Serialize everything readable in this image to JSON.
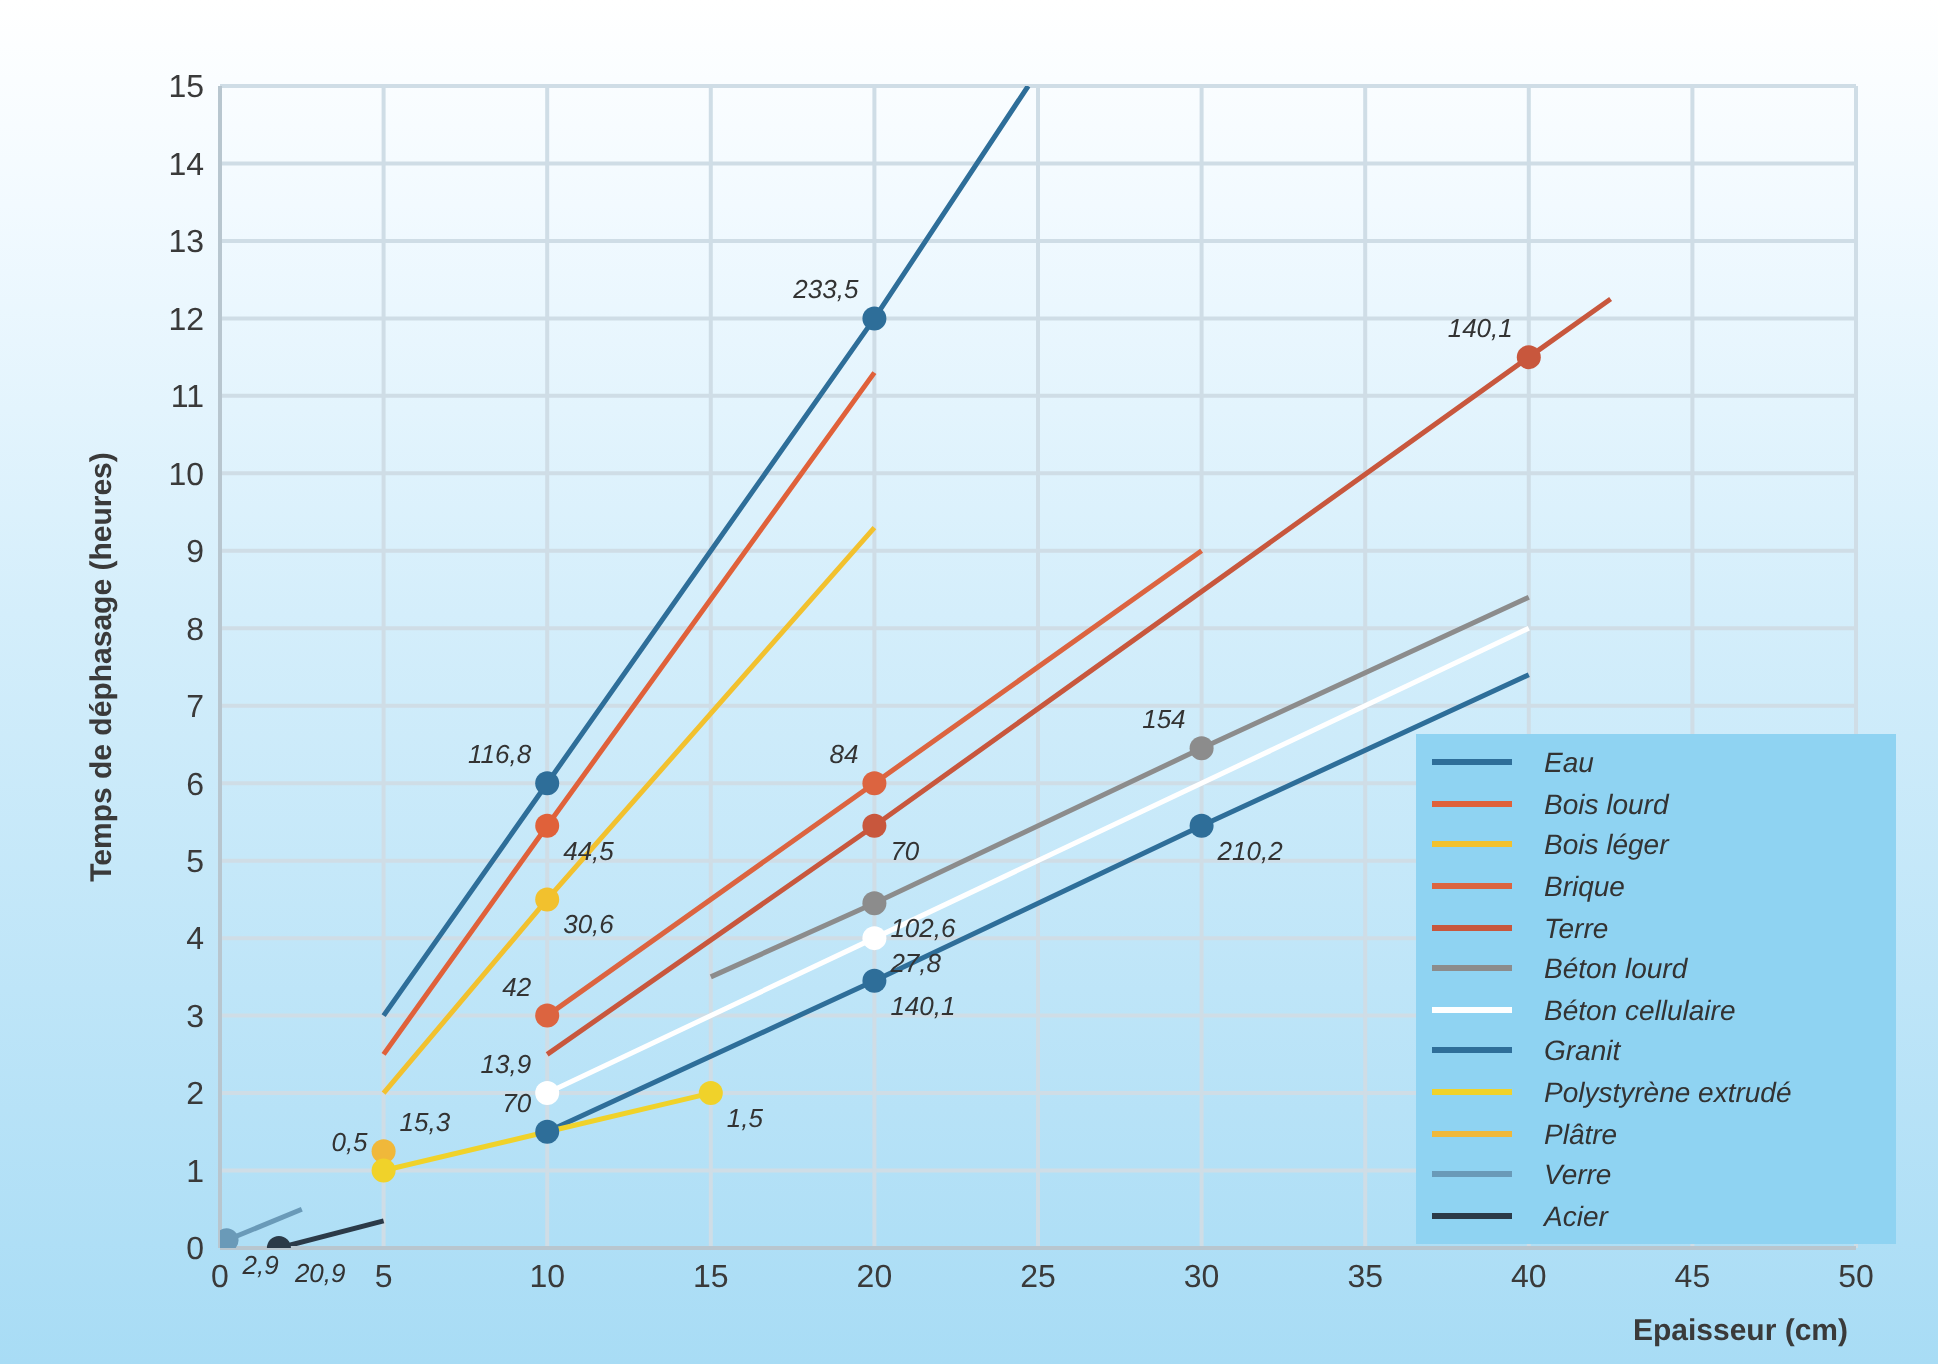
{
  "chart_data": {
    "type": "line",
    "xlabel": "Epaisseur (cm)",
    "ylabel": "Temps de déphasage (heures)",
    "xlim": [
      0,
      50
    ],
    "ylim": [
      0,
      15
    ],
    "xticks": [
      0,
      5,
      10,
      15,
      20,
      25,
      30,
      35,
      40,
      45,
      50
    ],
    "yticks": [
      0,
      1,
      2,
      3,
      4,
      5,
      6,
      7,
      8,
      9,
      10,
      11,
      12,
      13,
      14,
      15
    ],
    "grid": true,
    "legend": "bottom right",
    "marker": "none",
    "line_style": "solid",
    "series": [
      {
        "name": "Eau",
        "color": "#2e6e99",
        "x": [
          5,
          10,
          20,
          24.7
        ],
        "values": [
          3,
          6,
          12,
          15
        ]
      },
      {
        "name": "Bois lourd",
        "color": "#e0613a",
        "x": [
          5,
          10,
          20
        ],
        "values": [
          2.5,
          5.45,
          11.3
        ]
      },
      {
        "name": "Bois léger",
        "color": "#f2c12e",
        "x": [
          5,
          10,
          20
        ],
        "values": [
          2,
          4.5,
          9.3
        ]
      },
      {
        "name": "Brique",
        "color": "#dc6440",
        "x": [
          10,
          20,
          30
        ],
        "values": [
          3,
          6,
          9
        ]
      },
      {
        "name": "Terre",
        "color": "#c8573d",
        "x": [
          10,
          20,
          40,
          42.5
        ],
        "values": [
          2.5,
          5.45,
          11.5,
          12.25
        ]
      },
      {
        "name": "Béton lourd",
        "color": "#8c8c8c",
        "x": [
          15,
          20,
          30,
          40
        ],
        "values": [
          3.5,
          4.45,
          6.45,
          8.4
        ]
      },
      {
        "name": "Béton cellulaire",
        "color": "#ffffff",
        "x": [
          10,
          20,
          40
        ],
        "values": [
          2,
          4,
          8
        ]
      },
      {
        "name": "Granit",
        "color": "#2e6e99",
        "x": [
          10,
          20,
          30,
          40
        ],
        "values": [
          1.5,
          3.45,
          5.45,
          7.4
        ]
      },
      {
        "name": "Polystyrène extrudé",
        "color": "#f0d22a",
        "x": [
          5,
          10,
          15
        ],
        "values": [
          1,
          1.5,
          2
        ]
      },
      {
        "name": "Plâtre",
        "type": "scatter",
        "marker": "circle",
        "color": "#f0b83a",
        "x": [
          5
        ],
        "values": [
          1.25
        ]
      },
      {
        "name": "Verre",
        "color": "#6a9ab8",
        "x": [
          0.2,
          2.5
        ],
        "values": [
          0.1,
          0.5
        ]
      },
      {
        "name": "Acier",
        "color": "#2b3a48",
        "x": [
          1.8,
          5
        ],
        "values": [
          0,
          0.35
        ]
      },
      {
        "type": "scatter",
        "marker": "circle",
        "color": "#2e6e99",
        "x": [
          10,
          20
        ],
        "values": [
          6,
          12
        ]
      },
      {
        "type": "scatter",
        "marker": "circle",
        "color": "#e0613a",
        "x": [
          10
        ],
        "values": [
          5.45
        ]
      },
      {
        "type": "scatter",
        "marker": "circle",
        "color": "#f2c12e",
        "x": [
          10
        ],
        "values": [
          4.5
        ]
      },
      {
        "type": "scatter",
        "marker": "circle",
        "color": "#dc6440",
        "x": [
          10,
          20
        ],
        "values": [
          3,
          6
        ]
      },
      {
        "type": "scatter",
        "marker": "circle",
        "color": "#c8573d",
        "x": [
          20,
          40
        ],
        "values": [
          5.45,
          11.5
        ]
      },
      {
        "type": "scatter",
        "marker": "circle",
        "color": "#8c8c8c",
        "x": [
          20,
          30
        ],
        "values": [
          4.45,
          6.45
        ]
      },
      {
        "type": "scatter",
        "marker": "circle",
        "color": "#ffffff",
        "x": [
          10,
          20
        ],
        "values": [
          2,
          4
        ]
      },
      {
        "type": "scatter",
        "marker": "circle",
        "color": "#2e6e99",
        "x": [
          10,
          20,
          30
        ],
        "values": [
          1.5,
          3.45,
          5.45
        ]
      },
      {
        "type": "scatter",
        "marker": "circle",
        "color": "#f0d22a",
        "x": [
          5,
          15
        ],
        "values": [
          1,
          2
        ]
      },
      {
        "type": "scatter",
        "marker": "circle",
        "color": "#6a9ab8",
        "x": [
          0.2
        ],
        "values": [
          0.1
        ]
      },
      {
        "type": "scatter",
        "marker": "circle",
        "color": "#2b3a48",
        "x": [
          1.8
        ],
        "values": [
          0
        ]
      }
    ],
    "annotations": [
      {
        "text": "116,8",
        "x": 10,
        "y": 6
      },
      {
        "text": "233,5",
        "x": 20,
        "y": 12
      },
      {
        "text": "44,5",
        "x": 10,
        "y": 5.45
      },
      {
        "text": "30,6",
        "x": 10,
        "y": 4.5
      },
      {
        "text": "42",
        "x": 10,
        "y": 3
      },
      {
        "text": "84",
        "x": 20,
        "y": 6
      },
      {
        "text": "70",
        "x": 20,
        "y": 5.45
      },
      {
        "text": "140,1",
        "x": 40,
        "y": 11.5
      },
      {
        "text": "102,6",
        "x": 20,
        "y": 4.45
      },
      {
        "text": "154",
        "x": 30,
        "y": 6.45
      },
      {
        "text": "13,9",
        "x": 10,
        "y": 2
      },
      {
        "text": "27,8",
        "x": 20,
        "y": 4
      },
      {
        "text": "70",
        "x": 10,
        "y": 1.5
      },
      {
        "text": "140,1",
        "x": 20,
        "y": 3.45
      },
      {
        "text": "210,2",
        "x": 30,
        "y": 5.45
      },
      {
        "text": "0,5",
        "x": 5,
        "y": 1
      },
      {
        "text": "1,5",
        "x": 15,
        "y": 2
      },
      {
        "text": "15,3",
        "x": 5,
        "y": 1.25
      },
      {
        "text": "2,9",
        "x": 0.2,
        "y": 0.1
      },
      {
        "text": "20,9",
        "x": 1.8,
        "y": 0
      }
    ]
  }
}
